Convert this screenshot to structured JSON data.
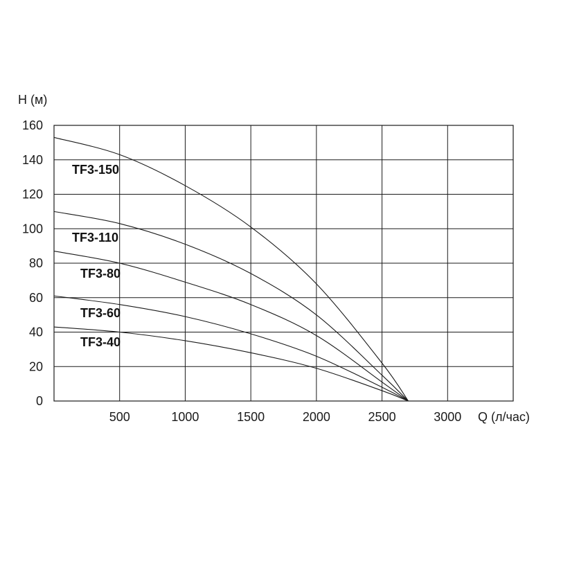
{
  "chart_data": {
    "type": "line",
    "xlabel": "Q (л/час)",
    "ylabel": "H (м)",
    "xlim": [
      0,
      3500
    ],
    "ylim": [
      0,
      160
    ],
    "xticks": [
      500,
      1000,
      1500,
      2000,
      2500,
      3000
    ],
    "yticks": [
      0,
      20,
      40,
      60,
      80,
      100,
      120,
      140,
      160
    ],
    "grid": true,
    "series": [
      {
        "name": "TF3-150",
        "x": [
          0,
          500,
          1000,
          1500,
          2000,
          2500,
          2700
        ],
        "y": [
          153,
          143,
          125,
          101,
          68,
          22,
          0
        ]
      },
      {
        "name": "TF3-110",
        "x": [
          0,
          500,
          1000,
          1500,
          2000,
          2500,
          2700
        ],
        "y": [
          110,
          103,
          91,
          74,
          50,
          15,
          0
        ]
      },
      {
        "name": "TF3-80",
        "x": [
          0,
          500,
          1000,
          1500,
          2000,
          2500,
          2700
        ],
        "y": [
          87,
          80,
          69,
          56,
          38,
          11,
          0
        ]
      },
      {
        "name": "TF3-60",
        "x": [
          0,
          500,
          1000,
          1500,
          2000,
          2500,
          2700
        ],
        "y": [
          61,
          56,
          49,
          39,
          26,
          8,
          0
        ]
      },
      {
        "name": "TF3-40",
        "x": [
          0,
          500,
          1000,
          1500,
          2000,
          2500,
          2700
        ],
        "y": [
          43,
          40,
          35,
          28,
          19,
          6,
          0
        ]
      }
    ]
  }
}
